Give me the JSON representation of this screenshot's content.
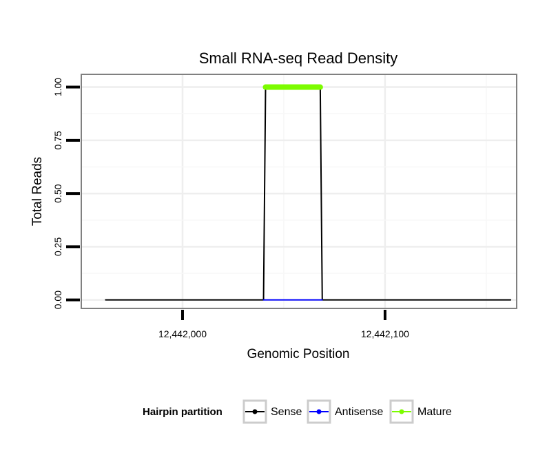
{
  "chart_data": {
    "type": "line",
    "title": "Small RNA-seq Read Density",
    "xlabel": "Genomic Position",
    "ylabel": "Total Reads",
    "xlim": [
      12441950,
      12442165
    ],
    "ylim": [
      -0.04,
      1.06
    ],
    "x_ticks": [
      12442000,
      12442100
    ],
    "x_tick_labels": [
      "12,442,000",
      "12,442,100"
    ],
    "y_ticks": [
      0,
      0.25,
      0.5,
      0.75,
      1.0
    ],
    "y_tick_labels": [
      "0.00",
      "0.25",
      "0.50",
      "0.75",
      "1.00"
    ],
    "grid": true,
    "legend": {
      "title": "Hairpin partition",
      "position": "bottom",
      "entries": [
        {
          "label": "Sense",
          "color": "#000000"
        },
        {
          "label": "Antisense",
          "color": "#0000ff"
        },
        {
          "label": "Mature",
          "color": "#7cfc00"
        }
      ]
    },
    "series": [
      {
        "name": "Sense",
        "color": "#000000",
        "x": [
          12441962,
          12442040,
          12442041,
          12442068,
          12442069,
          12442162
        ],
        "y": [
          0,
          0,
          1,
          1,
          0,
          0
        ]
      },
      {
        "name": "Antisense",
        "color": "#0000ff",
        "x": [
          12442040,
          12442069
        ],
        "y": [
          0,
          0
        ]
      },
      {
        "name": "Mature",
        "color": "#7cfc00",
        "x": [
          12442041,
          12442068
        ],
        "y": [
          1,
          1
        ]
      }
    ]
  }
}
